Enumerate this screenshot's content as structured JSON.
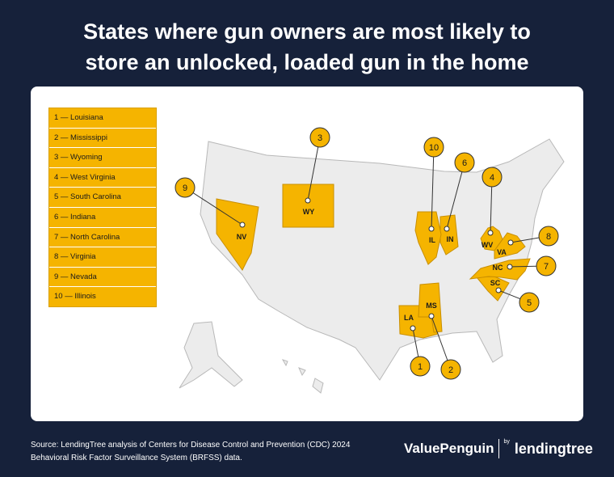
{
  "title": "States where gun owners are most likely to store an unlocked, loaded gun in the home",
  "legend": [
    "1 — Louisiana",
    "2 — Mississippi",
    "3 — Wyoming",
    "4 — West Virginia",
    "5 — South Carolina",
    "6 — Indiana",
    "7 — North Carolina",
    "8 — Virginia",
    "9 — Nevada",
    "10 — Illinois"
  ],
  "states": [
    {
      "abbr": "LA",
      "rank": 1
    },
    {
      "abbr": "MS",
      "rank": 2
    },
    {
      "abbr": "WY",
      "rank": 3
    },
    {
      "abbr": "WV",
      "rank": 4
    },
    {
      "abbr": "SC",
      "rank": 5
    },
    {
      "abbr": "IN",
      "rank": 6
    },
    {
      "abbr": "NC",
      "rank": 7
    },
    {
      "abbr": "VA",
      "rank": 8
    },
    {
      "abbr": "NV",
      "rank": 9
    },
    {
      "abbr": "IL",
      "rank": 10
    }
  ],
  "source": "Source: LendingTree analysis of Centers for Disease Control and Prevention (CDC) 2024 Behavioral Risk Factor Surveillance System (BRFSS) data.",
  "brand": {
    "valuepenguin": "ValuePenguin",
    "by": "by",
    "lendingtree": "lendingtree"
  }
}
